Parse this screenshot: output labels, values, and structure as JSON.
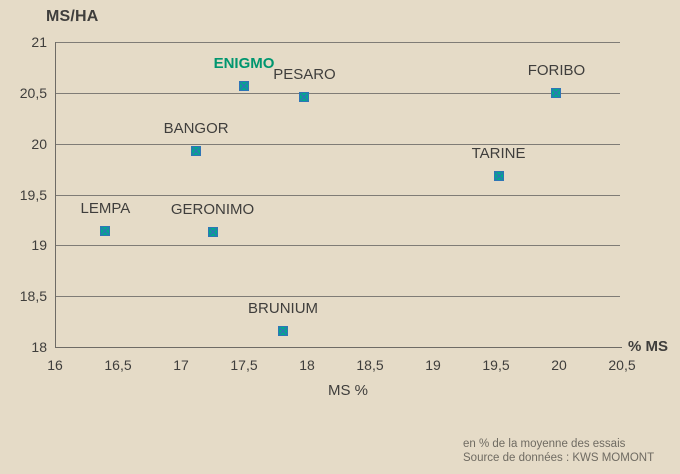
{
  "colors": {
    "background": "#E5DBC7",
    "grid": "#7F7C76",
    "axis": "#6E6B65",
    "text": "#3F3E3C",
    "muted_text": "#6F6B62",
    "highlight_label": "#00966F",
    "marker_fill": "#00A98C",
    "marker_stroke": "#2E75B6"
  },
  "footer": {
    "line1": "en % de la moyenne des essais",
    "line2": "Source de données : KWS MOMONT"
  },
  "chart_data": {
    "type": "scatter",
    "title": "MS/HA",
    "xlabel": "MS %",
    "ylabel": "MS/HA",
    "x_end_label": "% MS",
    "xlim": [
      16,
      20.5
    ],
    "ylim": [
      18,
      21
    ],
    "grid": "horizontal",
    "legend": "none",
    "x_ticks": [
      {
        "value": 16,
        "label": "16"
      },
      {
        "value": 16.5,
        "label": "16,5"
      },
      {
        "value": 17,
        "label": "17"
      },
      {
        "value": 17.5,
        "label": "17,5"
      },
      {
        "value": 18,
        "label": "18"
      },
      {
        "value": 18.5,
        "label": "18,5"
      },
      {
        "value": 19,
        "label": "19"
      },
      {
        "value": 19.5,
        "label": "19,5"
      },
      {
        "value": 20,
        "label": "20"
      },
      {
        "value": 20.5,
        "label": "20,5"
      }
    ],
    "y_ticks": [
      {
        "value": 21,
        "label": "21"
      },
      {
        "value": 20.5,
        "label": "20,5"
      },
      {
        "value": 20,
        "label": "20"
      },
      {
        "value": 19.5,
        "label": "19,5"
      },
      {
        "value": 19,
        "label": "19"
      },
      {
        "value": 18.5,
        "label": "18,5"
      },
      {
        "value": 18,
        "label": "18"
      }
    ],
    "points": [
      {
        "name": "ENIGMO",
        "x": 17.5,
        "y": 20.6,
        "highlight": true
      },
      {
        "name": "PESARO",
        "x": 17.98,
        "y": 20.49,
        "highlight": false
      },
      {
        "name": "FORIBO",
        "x": 19.98,
        "y": 20.53,
        "highlight": false
      },
      {
        "name": "BANGOR",
        "x": 17.12,
        "y": 19.96,
        "highlight": false
      },
      {
        "name": "TARINE",
        "x": 19.52,
        "y": 19.71,
        "highlight": false
      },
      {
        "name": "LEMPA",
        "x": 16.4,
        "y": 19.17,
        "highlight": false
      },
      {
        "name": "GERONIMO",
        "x": 17.25,
        "y": 19.16,
        "highlight": false
      },
      {
        "name": "BRUNIUM",
        "x": 17.81,
        "y": 18.19,
        "highlight": false
      }
    ]
  }
}
